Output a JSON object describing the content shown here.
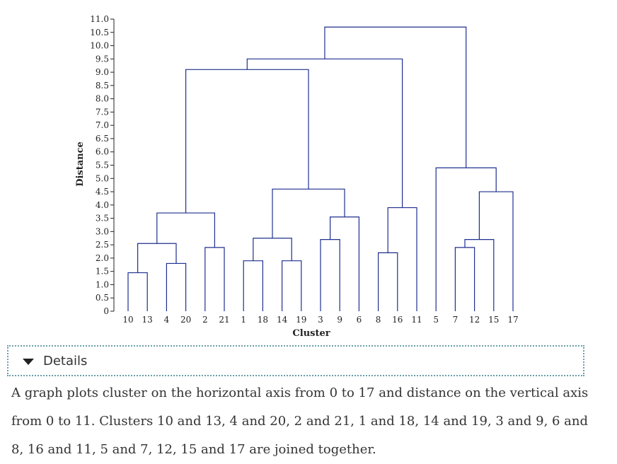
{
  "chart_data": {
    "type": "dendrogram",
    "ylabel": "Distance",
    "xlabel": "Cluster",
    "ylim": [
      0,
      11
    ],
    "yticks": [
      "0",
      "0.5",
      "1.0",
      "1.5",
      "2.0",
      "2.5",
      "3.0",
      "3.5",
      "4.0",
      "4.5",
      "5.0",
      "5.5",
      "6.0",
      "6.5",
      "7.0",
      "7.5",
      "8.0",
      "8.5",
      "9.0",
      "9.5",
      "10.0",
      "10.5",
      "11.0"
    ],
    "leaves": [
      "10",
      "13",
      "4",
      "20",
      "2",
      "21",
      "1",
      "18",
      "14",
      "19",
      "3",
      "9",
      "6",
      "8",
      "16",
      "11",
      "5",
      "7",
      "12",
      "15",
      "17"
    ],
    "merges": [
      {
        "a": "10",
        "b": "13",
        "height": 1.45
      },
      {
        "a": "4",
        "b": "20",
        "height": 1.8
      },
      {
        "a": "2",
        "b": "21",
        "height": 2.4
      },
      {
        "a": "1",
        "b": "18",
        "height": 1.9
      },
      {
        "a": "14",
        "b": "19",
        "height": 1.9
      },
      {
        "a": "3",
        "b": "9",
        "height": 2.7
      },
      {
        "a": "8",
        "b": "16",
        "height": 2.2
      },
      {
        "a": "7",
        "b": "12",
        "height": 2.4
      },
      {
        "a": "[10,13]",
        "b": "[4,20]",
        "height": 2.55
      },
      {
        "a": "[7,12]",
        "b": "15",
        "height": 2.7
      },
      {
        "a": "[1,18]",
        "b": "[14,19]",
        "height": 2.75
      },
      {
        "a": "[3,9]",
        "b": "6",
        "height": 3.55
      },
      {
        "a": "[10,13,4,20]",
        "b": "[2,21]",
        "height": 3.7
      },
      {
        "a": "[8,16]",
        "b": "11",
        "height": 3.9
      },
      {
        "a": "[7,12,15]",
        "b": "17",
        "height": 4.5
      },
      {
        "a": "[1,18,14,19]",
        "b": "[3,9,6]",
        "height": 4.6
      },
      {
        "a": "5",
        "b": "[7,12,15,17]",
        "height": 5.4
      },
      {
        "a": "[10,13,4,20,2,21]",
        "b": "[1,18,14,19,3,9,6]",
        "height": 9.1
      },
      {
        "a": "[10..6]",
        "b": "[8,16,11]",
        "height": 9.5
      },
      {
        "a": "[10..11]",
        "b": "[5,7,12,15,17]",
        "height": 10.7
      }
    ]
  },
  "details": {
    "label": "Details",
    "description": "A graph plots cluster on the horizontal axis from 0 to 17 and distance on the vertical axis from 0 to 11. Clusters 10 and 13, 4 and 20, 2 and 21, 1 and 18, 14 and 19, 3 and 9, 6 and 8, 16 and 11, 5 and 7, 12, 15 and 17 are joined together."
  },
  "colors": {
    "link": "#1f2f8f",
    "axis": "#222222"
  }
}
